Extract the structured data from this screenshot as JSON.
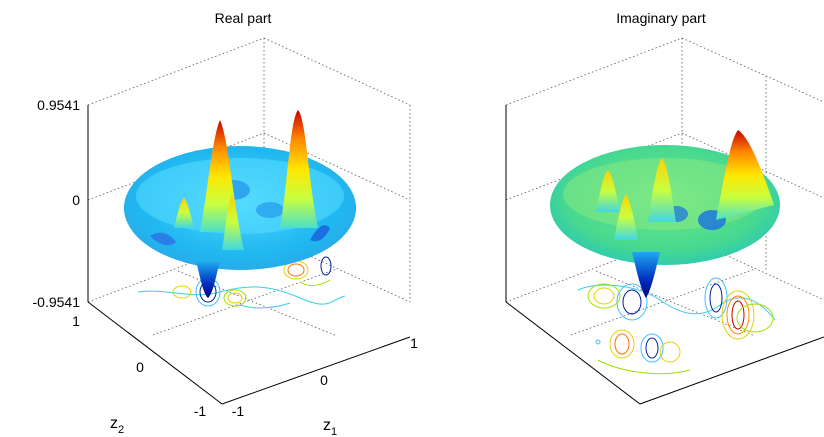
{
  "figure": {
    "panels": [
      {
        "title": "Real part",
        "z_ticks": [
          "0.9541",
          "0",
          "-0.9541"
        ],
        "z2_ticks": [
          "1",
          "0",
          "-1"
        ],
        "z1_ticks": [
          "-1",
          "0",
          "1"
        ],
        "xlabel": "z",
        "xlabel_sub": "1",
        "ylabel": "z",
        "ylabel_sub": "2"
      },
      {
        "title": "Imaginary part"
      }
    ]
  },
  "chart_data": [
    {
      "type": "surface",
      "title": "Real part",
      "xlabel": "z1",
      "ylabel": "z2",
      "xlim": [
        -1,
        1
      ],
      "ylim": [
        -1,
        1
      ],
      "zlim": [
        -0.9541,
        0.9541
      ],
      "grid": "dotted",
      "colormap": "jet",
      "contours_on_floor": true,
      "peaks": [
        {
          "z1": 0.35,
          "z2": 0.15,
          "z": 0.9541
        },
        {
          "z1": -0.3,
          "z2": 0.05,
          "z": 0.8
        },
        {
          "z1": 0.0,
          "z2": -0.25,
          "z": 0.35
        },
        {
          "z1": -0.45,
          "z2": -0.35,
          "z": 0.15
        }
      ],
      "troughs": [
        {
          "z1": -0.25,
          "z2": -0.55,
          "z": -0.9541
        },
        {
          "z1": 0.35,
          "z2": -0.35,
          "z": -0.3
        }
      ]
    },
    {
      "type": "surface",
      "title": "Imaginary part",
      "xlim": [
        -1,
        1
      ],
      "ylim": [
        -1,
        1
      ],
      "zlim": [
        -0.9541,
        0.9541
      ],
      "grid": "dotted",
      "colormap": "jet",
      "contours_on_floor": true,
      "peaks": [
        {
          "z1": 0.55,
          "z2": 0.1,
          "z": 0.9541
        },
        {
          "z1": -0.15,
          "z2": 0.25,
          "z": 0.3
        },
        {
          "z1": -0.35,
          "z2": 0.15,
          "z": 0.3
        },
        {
          "z1": -0.3,
          "z2": -0.2,
          "z": 0.3
        }
      ],
      "troughs": [
        {
          "z1": -0.3,
          "z2": -0.5,
          "z": -0.9541
        },
        {
          "z1": 0.3,
          "z2": -0.25,
          "z": -0.4
        }
      ]
    }
  ]
}
